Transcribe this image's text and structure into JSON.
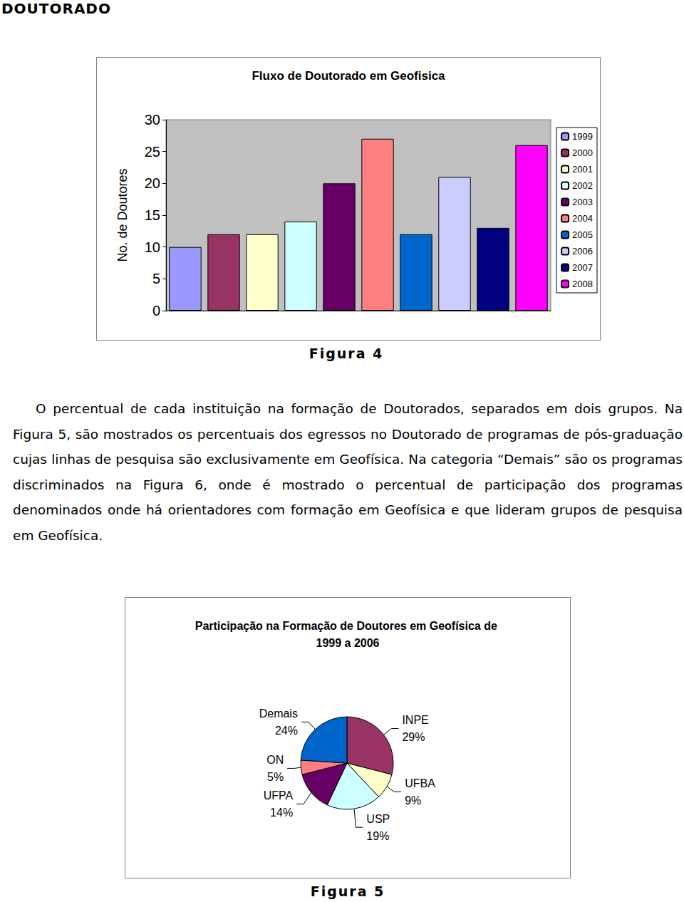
{
  "header": "DOUTORADO",
  "chart_data": [
    {
      "type": "bar",
      "title": "Fluxo de Doutorado em Geofisica",
      "y_label": "No. de Doutores",
      "categories": [
        "1999",
        "2000",
        "2001",
        "2002",
        "2003",
        "2004",
        "2005",
        "2006",
        "2007",
        "2008"
      ],
      "values": [
        10,
        12,
        12,
        14,
        20,
        27,
        12,
        21,
        13,
        26
      ],
      "colors": [
        "#9999ff",
        "#993366",
        "#ffffcc",
        "#ccffff",
        "#660066",
        "#ff8080",
        "#0066cc",
        "#ccccff",
        "#000080",
        "#ff00ff"
      ],
      "ylim": [
        0,
        30
      ],
      "yticks": [
        0,
        5,
        10,
        15,
        20,
        25,
        30
      ],
      "grid": false,
      "legend": "right",
      "tick_labels": "y"
    },
    {
      "type": "pie",
      "title": "Participação na Formação de Doutores em Geofísica de 1999 a 2006",
      "categories": [
        "INPE",
        "UFBA",
        "USP",
        "UFPA",
        "ON",
        "Demais"
      ],
      "values": [
        29,
        9,
        19,
        14,
        5,
        24
      ],
      "value_labels": [
        "29%",
        "9%",
        "19%",
        "14%",
        "5%",
        "24%"
      ],
      "colors": [
        "#993366",
        "#ffffcc",
        "#ccffff",
        "#660066",
        "#ff8080",
        "#0066cc"
      ],
      "data_labels": true
    }
  ],
  "captions": [
    "Figura 4",
    "Figura 5"
  ],
  "paragraph": "O percentual de cada instituição na formação de Doutorados, separados em dois grupos. Na Figura 5, são mostrados os percentuais dos egressos no Doutorado de programas de pós-graduação cujas linhas de pesquisa são exclusivamente em Geofísica. Na categoria “Demais” são os programas discriminados na Figura 6, onde é mostrado o percentual de participação dos programas denominados onde há orientadores com formação em Geofísica e que lideram grupos de pesquisa em Geofísica."
}
